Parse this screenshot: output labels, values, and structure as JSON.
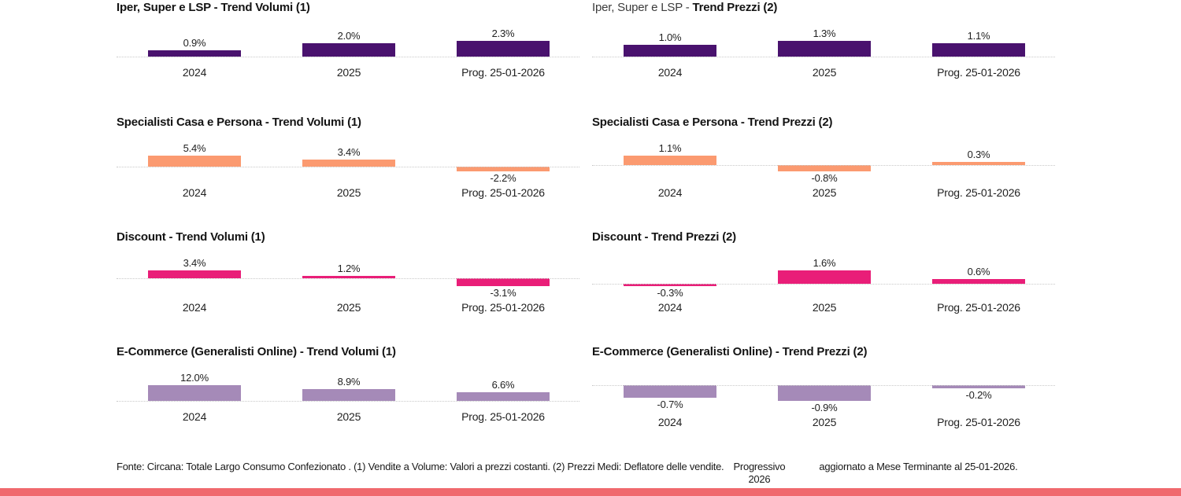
{
  "page": {
    "background": "#ffffff",
    "accent_strip_color": "#F0696E"
  },
  "chart_data": [
    {
      "type": "bar",
      "title": "Iper, Super e LSP - Trend Volumi (1)",
      "title_prefix": "",
      "title_main": "Iper, Super e LSP - Trend Volumi (1)",
      "categories": [
        "2024",
        "2025",
        "Prog. 25-01-2026"
      ],
      "values": [
        0.9,
        2.0,
        2.3
      ],
      "value_labels": [
        "0.9%",
        "2.0%",
        "2.3%"
      ],
      "bar_color": "#49126E"
    },
    {
      "type": "bar",
      "title": "Iper, Super e LSP - Trend Prezzi (2)",
      "title_prefix": "Iper, Super e LSP - ",
      "title_main": "Trend Prezzi (2)",
      "categories": [
        "2024",
        "2025",
        "Prog. 25-01-2026"
      ],
      "values": [
        1.0,
        1.3,
        1.1
      ],
      "value_labels": [
        "1.0%",
        "1.3%",
        "1.1%"
      ],
      "bar_color": "#49126E"
    },
    {
      "type": "bar",
      "title": "Specialisti Casa e Persona - Trend Volumi (1)",
      "title_prefix": "",
      "title_main": "Specialisti Casa e Persona - Trend Volumi (1)",
      "categories": [
        "2024",
        "2025",
        "Prog. 25-01-2026"
      ],
      "values": [
        5.4,
        3.4,
        -2.2
      ],
      "value_labels": [
        "5.4%",
        "3.4%",
        "-2.2%"
      ],
      "bar_color": "#FB9A70"
    },
    {
      "type": "bar",
      "title": "Specialisti Casa e Persona - Trend Prezzi (2)",
      "title_prefix": "",
      "title_main": "Specialisti Casa e Persona - Trend Prezzi (2)",
      "categories": [
        "2024",
        "2025",
        "Prog. 25-01-2026"
      ],
      "values": [
        1.1,
        -0.8,
        0.3
      ],
      "value_labels": [
        "1.1%",
        "-0.8%",
        "0.3%"
      ],
      "bar_color": "#FB9A70"
    },
    {
      "type": "bar",
      "title": "Discount - Trend Volumi (1)",
      "title_prefix": "",
      "title_main": "Discount - Trend Volumi (1)",
      "categories": [
        "2024",
        "2025",
        "Prog. 25-01-2026"
      ],
      "values": [
        3.4,
        1.2,
        -3.1
      ],
      "value_labels": [
        "3.4%",
        "1.2%",
        "-3.1%"
      ],
      "bar_color": "#E91E78"
    },
    {
      "type": "bar",
      "title": "Discount - Trend Prezzi (2)",
      "title_prefix": "",
      "title_main": "Discount - Trend Prezzi (2)",
      "categories": [
        "2024",
        "2025",
        "Prog. 25-01-2026"
      ],
      "values": [
        -0.3,
        1.6,
        0.6
      ],
      "value_labels": [
        "-0.3%",
        "1.6%",
        "0.6%"
      ],
      "bar_color": "#E91E78"
    },
    {
      "type": "bar",
      "title": "E-Commerce (Generalisti Online) - Trend Volumi (1)",
      "title_prefix": "",
      "title_main": "E-Commerce (Generalisti Online) - Trend Volumi (1)",
      "categories": [
        "2024",
        "2025",
        "Prog. 25-01-2026"
      ],
      "values": [
        12.0,
        8.9,
        6.6
      ],
      "value_labels": [
        "12.0%",
        "8.9%",
        "6.6%"
      ],
      "bar_color": "#A58AB8"
    },
    {
      "type": "bar",
      "title": "E-Commerce (Generalisti Online) - Trend Prezzi (2)",
      "title_prefix": "",
      "title_main": "E-Commerce (Generalisti Online) - Trend Prezzi (2)",
      "categories": [
        "2024",
        "2025",
        "Prog. 25-01-2026"
      ],
      "values": [
        -0.7,
        -0.9,
        -0.2
      ],
      "value_labels": [
        "-0.7%",
        "-0.9%",
        "-0.2%"
      ],
      "bar_color": "#A58AB8"
    }
  ],
  "footer": {
    "source_text": "Fonte: Circana: Totale Largo Consumo Confezionato . (1) Vendite a Volume: Valori a prezzi costanti. (2) Prezzi Medi: Deflatore delle vendite.",
    "progressivo_text": "Progressivo 2026",
    "updated_text": "aggiornato a Mese Terminante al 25-01-2026."
  }
}
